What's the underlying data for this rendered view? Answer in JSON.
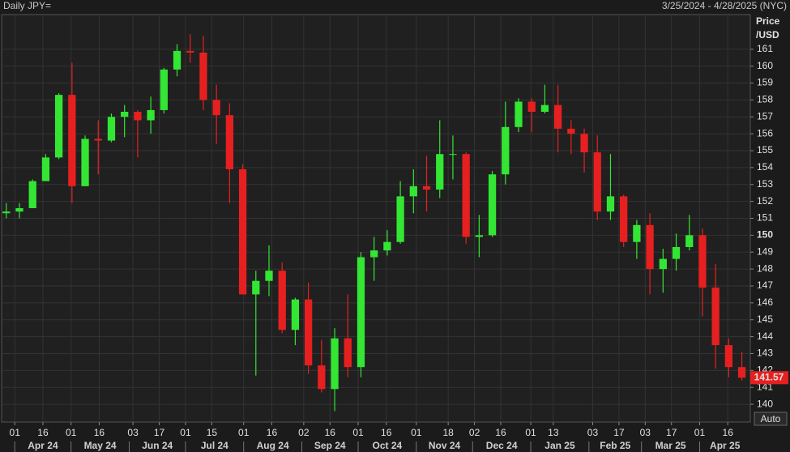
{
  "chart_data": {
    "type": "candlestick",
    "title": "Daily JPY=",
    "subtitle": "3/25/2024 - 4/28/2025 (NYC)",
    "y_label": [
      "Price",
      "/USD"
    ],
    "scale_mode": "Auto",
    "up_color": "#33e633",
    "down_color": "#e62020",
    "grid": true,
    "bold_ytick": 150,
    "xlim": [
      "2024-03-25",
      "2025-04-28"
    ],
    "ylim": [
      138.95,
      163.05
    ],
    "yticks": [
      140,
      141,
      142,
      143,
      144,
      145,
      146,
      147,
      148,
      149,
      150,
      151,
      152,
      153,
      154,
      155,
      156,
      157,
      158,
      159,
      160,
      161
    ],
    "xticks": [
      {
        "value": "2024-04-01",
        "label": "01"
      },
      {
        "value": "2024-04-16",
        "label": "16"
      },
      {
        "value": "2024-05-01",
        "label": "01"
      },
      {
        "value": "2024-05-16",
        "label": "16"
      },
      {
        "value": "2024-06-03",
        "label": "03"
      },
      {
        "value": "2024-06-17",
        "label": "17"
      },
      {
        "value": "2024-07-01",
        "label": "01"
      },
      {
        "value": "2024-07-15",
        "label": "15"
      },
      {
        "value": "2024-08-01",
        "label": "01"
      },
      {
        "value": "2024-08-16",
        "label": "16"
      },
      {
        "value": "2024-09-02",
        "label": "02"
      },
      {
        "value": "2024-09-16",
        "label": "16"
      },
      {
        "value": "2024-10-01",
        "label": "01"
      },
      {
        "value": "2024-10-16",
        "label": "16"
      },
      {
        "value": "2024-11-01",
        "label": "01"
      },
      {
        "value": "2024-11-18",
        "label": "18"
      },
      {
        "value": "2024-12-02",
        "label": "02"
      },
      {
        "value": "2024-12-16",
        "label": "16"
      },
      {
        "value": "2025-01-01",
        "label": "01"
      },
      {
        "value": "2025-01-13",
        "label": "13"
      },
      {
        "value": "2025-02-03",
        "label": "03"
      },
      {
        "value": "2025-02-17",
        "label": "17"
      },
      {
        "value": "2025-03-03",
        "label": "03"
      },
      {
        "value": "2025-03-17",
        "label": "17"
      },
      {
        "value": "2025-04-01",
        "label": "01"
      },
      {
        "value": "2025-04-16",
        "label": "16"
      }
    ],
    "month_ticks": [
      {
        "value": "2024-04-01",
        "label": "Apr 24"
      },
      {
        "value": "2024-05-01",
        "label": "May 24"
      },
      {
        "value": "2024-06-01",
        "label": "Jun 24"
      },
      {
        "value": "2024-07-01",
        "label": "Jul 24"
      },
      {
        "value": "2024-08-01",
        "label": "Aug 24"
      },
      {
        "value": "2024-09-01",
        "label": "Sep 24"
      },
      {
        "value": "2024-10-01",
        "label": "Oct 24"
      },
      {
        "value": "2024-11-01",
        "label": "Nov 24"
      },
      {
        "value": "2024-12-01",
        "label": "Dec 24"
      },
      {
        "value": "2025-01-01",
        "label": "Jan 25"
      },
      {
        "value": "2025-02-01",
        "label": "Feb 25"
      },
      {
        "value": "2025-03-01",
        "label": "Mar 25"
      },
      {
        "value": "2025-04-01",
        "label": "Apr 25"
      }
    ],
    "x": [
      "2024-03-25",
      "2024-04-01",
      "2024-04-08",
      "2024-04-15",
      "2024-04-22",
      "2024-04-29",
      "2024-05-06",
      "2024-05-13",
      "2024-05-20",
      "2024-05-27",
      "2024-06-03",
      "2024-06-10",
      "2024-06-17",
      "2024-06-24",
      "2024-07-01",
      "2024-07-08",
      "2024-07-15",
      "2024-07-22",
      "2024-07-29",
      "2024-08-05",
      "2024-08-12",
      "2024-08-19",
      "2024-08-26",
      "2024-09-02",
      "2024-09-09",
      "2024-09-16",
      "2024-09-23",
      "2024-09-30",
      "2024-10-07",
      "2024-10-14",
      "2024-10-21",
      "2024-10-28",
      "2024-11-04",
      "2024-11-11",
      "2024-11-18",
      "2024-11-25",
      "2024-12-02",
      "2024-12-09",
      "2024-12-16",
      "2024-12-23",
      "2024-12-30",
      "2025-01-06",
      "2025-01-13",
      "2025-01-20",
      "2025-01-27",
      "2025-02-03",
      "2025-02-10",
      "2025-02-17",
      "2025-02-24",
      "2025-03-03",
      "2025-03-10",
      "2025-03-17",
      "2025-03-24",
      "2025-03-31",
      "2025-04-07",
      "2025-04-14",
      "2025-04-21"
    ],
    "open": [
      151.3,
      151.4,
      151.6,
      153.2,
      154.6,
      158.3,
      152.9,
      155.7,
      155.6,
      157.0,
      157.3,
      156.8,
      157.4,
      159.8,
      160.9,
      160.8,
      158.0,
      157.1,
      153.9,
      146.5,
      147.3,
      147.9,
      144.4,
      146.2,
      142.3,
      140.9,
      143.9,
      142.2,
      148.7,
      149.1,
      149.6,
      152.3,
      152.9,
      152.7,
      154.8,
      154.8,
      149.9,
      150.0,
      153.6,
      156.4,
      157.9,
      157.3,
      157.7,
      156.3,
      156.0,
      154.9,
      151.4,
      152.3,
      149.6,
      150.6,
      148.0,
      148.6,
      149.3,
      150.0,
      146.9,
      143.5,
      142.2
    ],
    "high": [
      151.9,
      151.9,
      153.3,
      154.8,
      158.4,
      160.2,
      155.9,
      156.8,
      157.2,
      157.7,
      157.4,
      158.2,
      159.9,
      161.3,
      161.9,
      161.8,
      158.9,
      157.8,
      154.2,
      147.9,
      149.4,
      148.4,
      146.3,
      147.2,
      143.8,
      144.5,
      146.5,
      149.0,
      149.9,
      150.3,
      153.2,
      153.9,
      154.7,
      156.8,
      155.9,
      154.9,
      151.2,
      153.8,
      157.9,
      158.1,
      158.1,
      158.9,
      158.9,
      156.8,
      156.3,
      155.9,
      154.8,
      152.4,
      150.9,
      151.3,
      149.2,
      150.1,
      151.2,
      150.4,
      148.3,
      143.9,
      143.1
    ],
    "low": [
      151.0,
      151.0,
      151.6,
      153.2,
      154.5,
      151.9,
      152.9,
      153.6,
      155.5,
      155.8,
      154.6,
      156.0,
      157.2,
      159.4,
      160.2,
      157.4,
      155.4,
      151.9,
      146.5,
      141.7,
      146.4,
      144.2,
      143.5,
      141.8,
      140.7,
      139.6,
      141.6,
      141.6,
      147.3,
      148.8,
      149.5,
      151.3,
      151.4,
      152.2,
      153.3,
      149.5,
      148.7,
      149.9,
      153.0,
      156.1,
      156.1,
      157.2,
      154.9,
      154.8,
      153.7,
      150.9,
      150.9,
      149.3,
      148.6,
      146.5,
      146.6,
      147.9,
      149.1,
      145.2,
      142.1,
      141.6,
      141.4
    ],
    "close": [
      151.4,
      151.6,
      153.2,
      154.6,
      158.3,
      152.9,
      155.7,
      155.6,
      157.0,
      157.3,
      156.8,
      157.4,
      159.8,
      160.9,
      160.8,
      158.0,
      157.1,
      153.9,
      146.5,
      147.3,
      147.9,
      144.4,
      146.2,
      142.3,
      140.9,
      143.9,
      142.2,
      148.7,
      149.1,
      149.6,
      152.3,
      152.9,
      152.7,
      154.8,
      154.8,
      149.9,
      150.0,
      153.6,
      156.4,
      157.9,
      157.3,
      157.7,
      156.3,
      156.0,
      154.9,
      151.4,
      152.3,
      149.6,
      150.6,
      148.0,
      148.6,
      149.3,
      150.0,
      146.9,
      143.5,
      142.2,
      141.57
    ]
  }
}
